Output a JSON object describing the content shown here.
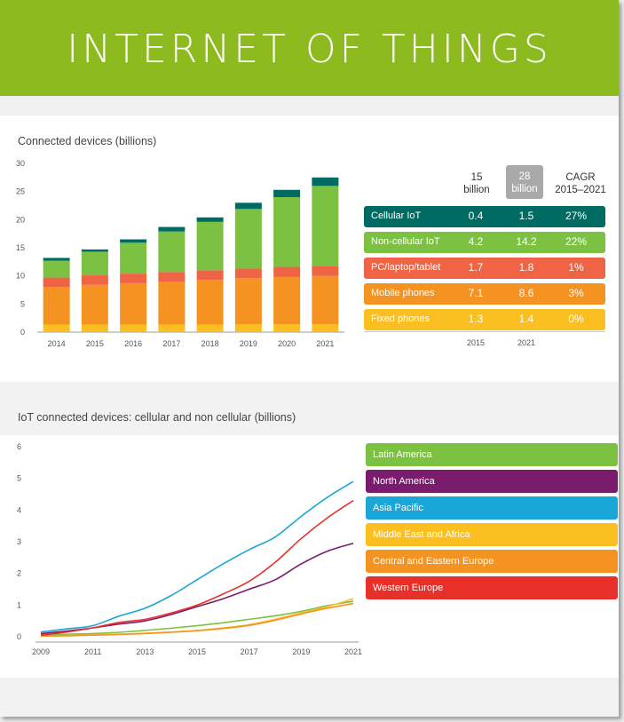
{
  "banner": {
    "title": "INTERNET OF THINGS"
  },
  "bar_chart": {
    "title": "Connected devices (billions)",
    "table": {
      "headers": [
        {
          "line1": "15",
          "line2": "billion"
        },
        {
          "line1": "28",
          "line2": "billion"
        },
        {
          "line1": "CAGR",
          "line2": "2015–2021"
        }
      ],
      "rows": [
        {
          "label": "Cellular IoT",
          "v2015": "0.4",
          "v2021": "1.5",
          "cagr": "27%",
          "color": "#006b63"
        },
        {
          "label": "Non-cellular IoT",
          "v2015": "4.2",
          "v2021": "14.2",
          "cagr": "22%",
          "color": "#7dc142"
        },
        {
          "label": "PC/laptop/tablet",
          "v2015": "1.7",
          "v2021": "1.8",
          "cagr": "1%",
          "color": "#f06446"
        },
        {
          "label": "Mobile phones",
          "v2015": "7.1",
          "v2021": "8.6",
          "cagr": "3%",
          "color": "#f59322"
        },
        {
          "label": "Fixed phones",
          "v2015": "1.3",
          "v2021": "1.4",
          "cagr": "0%",
          "color": "#fbbf22"
        }
      ],
      "footer": [
        "2015",
        "2021"
      ]
    }
  },
  "line_chart": {
    "title": "IoT connected devices: cellular and non cellular (billions)"
  },
  "chart_data": [
    {
      "type": "bar",
      "title": "Connected devices (billions)",
      "categories": [
        "2014",
        "2015",
        "2016",
        "2017",
        "2018",
        "2019",
        "2020",
        "2021"
      ],
      "ylim": [
        0,
        30
      ],
      "yticks": [
        0,
        5,
        10,
        15,
        20,
        25,
        30
      ],
      "stacked": true,
      "series": [
        {
          "name": "Fixed phones",
          "color": "#fbbf22",
          "values": [
            1.3,
            1.3,
            1.3,
            1.3,
            1.3,
            1.4,
            1.4,
            1.4
          ]
        },
        {
          "name": "Mobile phones",
          "color": "#f59322",
          "values": [
            6.7,
            7.1,
            7.4,
            7.7,
            8.0,
            8.2,
            8.4,
            8.6
          ]
        },
        {
          "name": "PC/laptop/tablet",
          "color": "#f06446",
          "values": [
            1.7,
            1.7,
            1.7,
            1.7,
            1.7,
            1.7,
            1.8,
            1.8
          ]
        },
        {
          "name": "Non-cellular IoT",
          "color": "#7dc142",
          "values": [
            3.0,
            4.2,
            5.5,
            7.2,
            8.6,
            10.6,
            12.4,
            14.2
          ]
        },
        {
          "name": "Cellular IoT",
          "color": "#006b63",
          "values": [
            0.5,
            0.4,
            0.6,
            0.8,
            0.8,
            1.1,
            1.3,
            1.5
          ]
        }
      ]
    },
    {
      "type": "line",
      "title": "IoT connected devices: cellular and non cellular (billions)",
      "x": [
        2009,
        2010,
        2011,
        2012,
        2013,
        2014,
        2015,
        2016,
        2017,
        2018,
        2019,
        2020,
        2021
      ],
      "xticks": [
        2009,
        2011,
        2013,
        2015,
        2017,
        2019,
        2021
      ],
      "ylim": [
        0,
        6
      ],
      "yticks": [
        0,
        1,
        2,
        3,
        4,
        5,
        6
      ],
      "series": [
        {
          "name": "Latin America",
          "color": "#7dc142",
          "values": [
            0.05,
            0.08,
            0.1,
            0.14,
            0.2,
            0.27,
            0.35,
            0.44,
            0.55,
            0.66,
            0.8,
            0.98,
            1.12
          ]
        },
        {
          "name": "North America",
          "color": "#7a1c6c",
          "values": [
            0.1,
            0.18,
            0.28,
            0.4,
            0.5,
            0.7,
            0.95,
            1.2,
            1.5,
            1.8,
            2.3,
            2.7,
            2.95
          ]
        },
        {
          "name": "Asia Pacific",
          "color": "#1ba6d8",
          "values": [
            0.15,
            0.25,
            0.35,
            0.65,
            0.9,
            1.3,
            1.8,
            2.3,
            2.75,
            3.15,
            3.8,
            4.4,
            4.9
          ]
        },
        {
          "name": "Middle East and Africa",
          "color": "#fbbf22",
          "values": [
            0.02,
            0.04,
            0.06,
            0.08,
            0.11,
            0.15,
            0.2,
            0.28,
            0.38,
            0.55,
            0.75,
            0.95,
            1.2
          ]
        },
        {
          "name": "Central and Eastern Europe",
          "color": "#f59322",
          "values": [
            0.02,
            0.03,
            0.05,
            0.07,
            0.1,
            0.14,
            0.19,
            0.26,
            0.36,
            0.52,
            0.72,
            0.9,
            1.05
          ]
        },
        {
          "name": "Western Europe",
          "color": "#e8302a",
          "values": [
            0.05,
            0.15,
            0.28,
            0.45,
            0.55,
            0.75,
            1.0,
            1.35,
            1.75,
            2.35,
            3.1,
            3.75,
            4.3
          ]
        }
      ]
    }
  ]
}
